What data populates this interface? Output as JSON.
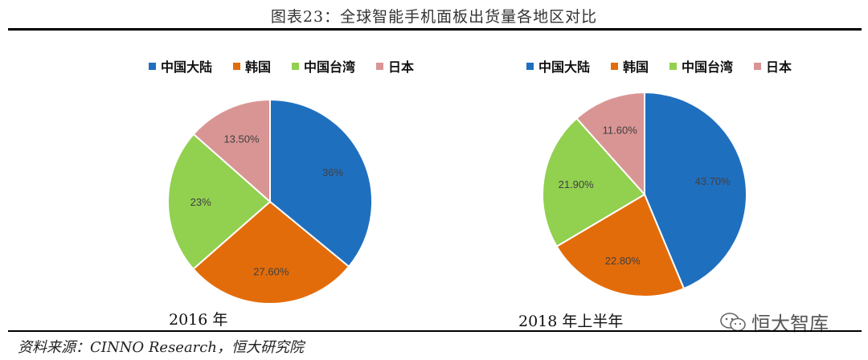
{
  "title": "图表23：全球智能手机面板出货量各地区对比",
  "source": "资料来源：CINNO Research，恒大研究院",
  "watermark": "恒大智库",
  "chart_data": [
    {
      "type": "pie",
      "year_label": "2016 年",
      "legend": [
        "中国大陆",
        "韩国",
        "中国台湾",
        "日本"
      ],
      "colors": [
        "#1f6fbf",
        "#e36c0a",
        "#92d050",
        "#d99594"
      ],
      "values": [
        36,
        27.6,
        23,
        13.5
      ],
      "labels": [
        "36%",
        "27.60%",
        "23%",
        "13.50%"
      ]
    },
    {
      "type": "pie",
      "year_label": "2018 年上半年",
      "legend": [
        "中国大陆",
        "韩国",
        "中国台湾",
        "日本"
      ],
      "colors": [
        "#1f6fbf",
        "#e36c0a",
        "#92d050",
        "#d99594"
      ],
      "values": [
        43.7,
        22.8,
        21.9,
        11.6
      ],
      "labels": [
        "43.70%",
        "22.80%",
        "21.90%",
        "11.60%"
      ]
    }
  ]
}
